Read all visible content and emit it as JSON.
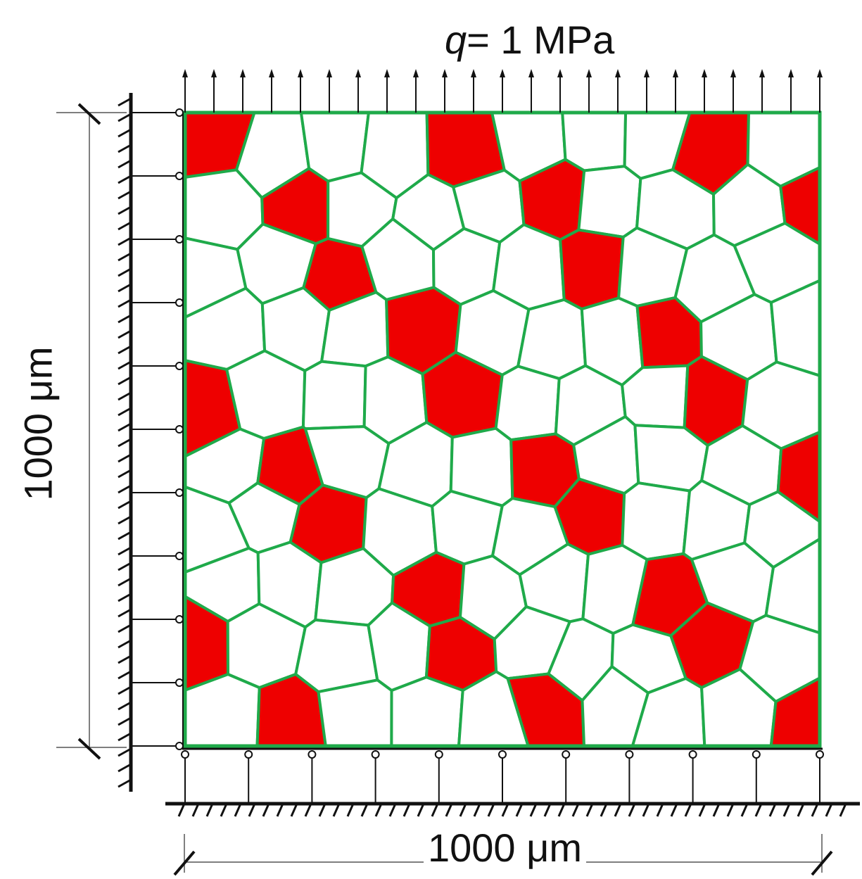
{
  "load": {
    "symbol": "q",
    "value_text": "= 1 MPa"
  },
  "dimensions": {
    "width_label": "1000 μm",
    "height_label": "1000 μm"
  },
  "colors": {
    "background": "#ffffff",
    "grain_boundary": "#1faa4a",
    "hard_grain": "#ee0000",
    "support_line": "#111111"
  },
  "supports": {
    "top_load_arrow_count": 23,
    "left_roller_count": 11,
    "bottom_roller_count": 11
  }
}
